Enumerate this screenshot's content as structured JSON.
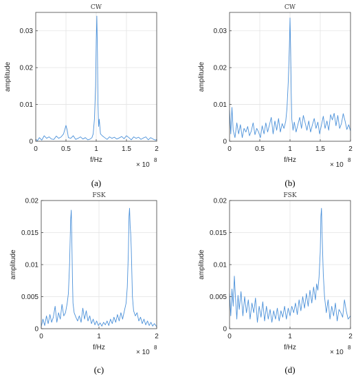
{
  "chart_data": [
    {
      "id": "a",
      "type": "line",
      "title": "CW",
      "xlabel": "f/Hz",
      "ylabel": "amplitude",
      "x_exponent_label": "× 10",
      "x_exponent": "8",
      "xlim": [
        0,
        2
      ],
      "ylim": [
        0,
        0.035
      ],
      "xticks": [
        0,
        0.5,
        1,
        1.5,
        2
      ],
      "xtick_labels": [
        "0",
        "0.5",
        "1",
        "1.5",
        "2"
      ],
      "yticks": [
        0,
        0.01,
        0.02,
        0.03
      ],
      "ytick_labels": [
        "0",
        "0.01",
        "0.02",
        "0.03"
      ],
      "panel_label": "(a)",
      "color": "#4a90d9",
      "series": [
        {
          "x": [
            0,
            0.03,
            0.06,
            0.1,
            0.14,
            0.18,
            0.22,
            0.26,
            0.3,
            0.34,
            0.38,
            0.42,
            0.46,
            0.5,
            0.52,
            0.54,
            0.58,
            0.62,
            0.66,
            0.7,
            0.74,
            0.78,
            0.82,
            0.86,
            0.9,
            0.93,
            0.95,
            0.97,
            0.99,
            1.0,
            1.01,
            1.02,
            1.03,
            1.04,
            1.05,
            1.07,
            1.1,
            1.14,
            1.18,
            1.22,
            1.26,
            1.3,
            1.34,
            1.38,
            1.42,
            1.46,
            1.5,
            1.54,
            1.58,
            1.62,
            1.66,
            1.7,
            1.74,
            1.78,
            1.82,
            1.86,
            1.9,
            1.94,
            1.98,
            2.0
          ],
          "y": [
            0.0005,
            0.0002,
            0.001,
            0.0003,
            0.0015,
            0.0008,
            0.0012,
            0.0006,
            0.0005,
            0.0014,
            0.0008,
            0.0012,
            0.002,
            0.0043,
            0.003,
            0.001,
            0.0008,
            0.0015,
            0.0005,
            0.0008,
            0.0012,
            0.0006,
            0.001,
            0.0004,
            0.0006,
            0.001,
            0.002,
            0.006,
            0.015,
            0.027,
            0.034,
            0.024,
            0.01,
            0.004,
            0.006,
            0.002,
            0.0015,
            0.001,
            0.0005,
            0.0012,
            0.0008,
            0.0011,
            0.0006,
            0.0009,
            0.0013,
            0.0007,
            0.0015,
            0.001,
            0.0004,
            0.0012,
            0.0008,
            0.0011,
            0.0005,
            0.0009,
            0.0012,
            0.0004,
            0.001,
            0.0006,
            0.0003,
            0.0005
          ]
        }
      ]
    },
    {
      "id": "b",
      "type": "line",
      "title": "CW",
      "xlabel": "f/Hz",
      "ylabel": "amplitude",
      "x_exponent_label": "× 10",
      "x_exponent": "8",
      "xlim": [
        0,
        2
      ],
      "ylim": [
        0,
        0.035
      ],
      "xticks": [
        0,
        0.5,
        1,
        1.5,
        2
      ],
      "xtick_labels": [
        "0",
        "0.5",
        "1",
        "1.5",
        "2"
      ],
      "yticks": [
        0,
        0.01,
        0.02,
        0.03
      ],
      "ytick_labels": [
        "0",
        "0.01",
        "0.02",
        "0.03"
      ],
      "panel_label": "(b)",
      "color": "#4a90d9",
      "series": [
        {
          "x": [
            0,
            0.02,
            0.04,
            0.06,
            0.09,
            0.12,
            0.15,
            0.18,
            0.21,
            0.24,
            0.27,
            0.3,
            0.33,
            0.36,
            0.39,
            0.42,
            0.45,
            0.48,
            0.51,
            0.54,
            0.57,
            0.6,
            0.63,
            0.66,
            0.69,
            0.72,
            0.75,
            0.78,
            0.81,
            0.84,
            0.87,
            0.9,
            0.93,
            0.95,
            0.97,
            0.99,
            1.0,
            1.01,
            1.02,
            1.03,
            1.05,
            1.07,
            1.1,
            1.13,
            1.16,
            1.19,
            1.22,
            1.25,
            1.28,
            1.31,
            1.34,
            1.37,
            1.4,
            1.43,
            1.46,
            1.49,
            1.52,
            1.55,
            1.58,
            1.61,
            1.64,
            1.67,
            1.7,
            1.73,
            1.76,
            1.79,
            1.82,
            1.85,
            1.88,
            1.91,
            1.94,
            1.97,
            2.0
          ],
          "y": [
            0.0085,
            0.002,
            0.0092,
            0.003,
            0.001,
            0.005,
            0.002,
            0.0045,
            0.001,
            0.0035,
            0.0025,
            0.004,
            0.0015,
            0.0028,
            0.005,
            0.0018,
            0.0035,
            0.0025,
            0.001,
            0.0042,
            0.002,
            0.005,
            0.0025,
            0.0045,
            0.0065,
            0.002,
            0.0055,
            0.003,
            0.0062,
            0.0025,
            0.0048,
            0.0035,
            0.0055,
            0.009,
            0.016,
            0.026,
            0.0335,
            0.025,
            0.013,
            0.006,
            0.003,
            0.0052,
            0.0025,
            0.0045,
            0.0065,
            0.0035,
            0.007,
            0.005,
            0.003,
            0.0055,
            0.0025,
            0.0045,
            0.0062,
            0.0035,
            0.0052,
            0.002,
            0.0045,
            0.0068,
            0.0035,
            0.0055,
            0.003,
            0.0072,
            0.0058,
            0.0076,
            0.0042,
            0.007,
            0.0035,
            0.0048,
            0.0075,
            0.0055,
            0.0032,
            0.0045,
            0.0028
          ]
        }
      ]
    },
    {
      "id": "c",
      "type": "line",
      "title": "FSK",
      "xlabel": "f/Hz",
      "ylabel": "amplitude",
      "x_exponent_label": "× 10",
      "x_exponent": "8",
      "xlim": [
        0,
        2
      ],
      "ylim": [
        0,
        0.02
      ],
      "xticks": [
        0,
        1,
        2
      ],
      "xtick_labels": [
        "0",
        "1",
        "2"
      ],
      "yticks": [
        0,
        0.005,
        0.01,
        0.015,
        0.02
      ],
      "ytick_labels": [
        "0",
        "0.005",
        "0.01",
        "0.015",
        "0.02"
      ],
      "panel_label": "(c)",
      "color": "#4a90d9",
      "series": [
        {
          "x": [
            0,
            0.03,
            0.06,
            0.09,
            0.12,
            0.15,
            0.18,
            0.21,
            0.24,
            0.27,
            0.3,
            0.33,
            0.36,
            0.39,
            0.42,
            0.45,
            0.47,
            0.49,
            0.51,
            0.52,
            0.53,
            0.54,
            0.55,
            0.57,
            0.6,
            0.63,
            0.66,
            0.69,
            0.72,
            0.75,
            0.78,
            0.81,
            0.84,
            0.87,
            0.9,
            0.93,
            0.96,
            0.99,
            1.02,
            1.05,
            1.08,
            1.11,
            1.14,
            1.17,
            1.2,
            1.23,
            1.26,
            1.29,
            1.32,
            1.35,
            1.38,
            1.41,
            1.44,
            1.47,
            1.49,
            1.51,
            1.52,
            1.53,
            1.54,
            1.55,
            1.56,
            1.57,
            1.58,
            1.6,
            1.63,
            1.66,
            1.69,
            1.72,
            1.75,
            1.78,
            1.81,
            1.84,
            1.87,
            1.9,
            1.93,
            1.96,
            2.0
          ],
          "y": [
            0.0003,
            0.0015,
            0.0005,
            0.002,
            0.0008,
            0.0022,
            0.001,
            0.0018,
            0.0035,
            0.001,
            0.0025,
            0.0015,
            0.0038,
            0.002,
            0.0025,
            0.004,
            0.0055,
            0.01,
            0.017,
            0.0185,
            0.014,
            0.008,
            0.004,
            0.0025,
            0.0018,
            0.0012,
            0.002,
            0.001,
            0.0032,
            0.0015,
            0.0028,
            0.0012,
            0.002,
            0.0008,
            0.0015,
            0.0006,
            0.0012,
            0.0005,
            0.0009,
            0.0004,
            0.001,
            0.0006,
            0.0012,
            0.0005,
            0.0015,
            0.0008,
            0.0018,
            0.001,
            0.0022,
            0.0012,
            0.0025,
            0.0015,
            0.0028,
            0.004,
            0.0065,
            0.012,
            0.0175,
            0.0188,
            0.016,
            0.0148,
            0.0125,
            0.0085,
            0.005,
            0.0028,
            0.002,
            0.0025,
            0.0012,
            0.0018,
            0.0008,
            0.0015,
            0.0006,
            0.0012,
            0.0005,
            0.001,
            0.0004,
            0.0008,
            0.0003
          ]
        }
      ]
    },
    {
      "id": "d",
      "type": "line",
      "title": "FSK",
      "xlabel": "f/Hz",
      "ylabel": "amplitude",
      "x_exponent_label": "× 10",
      "x_exponent": "8",
      "xlim": [
        0,
        2
      ],
      "ylim": [
        0,
        0.02
      ],
      "xticks": [
        0,
        1,
        2
      ],
      "xtick_labels": [
        "0",
        "1",
        "2"
      ],
      "yticks": [
        0,
        0.005,
        0.01,
        0.015,
        0.02
      ],
      "ytick_labels": [
        "0",
        "0.005",
        "0.01",
        "0.015",
        "0.02"
      ],
      "panel_label": "(d)",
      "color": "#4a90d9",
      "series": [
        {
          "x": [
            0,
            0.02,
            0.04,
            0.06,
            0.08,
            0.1,
            0.12,
            0.14,
            0.16,
            0.19,
            0.22,
            0.25,
            0.28,
            0.31,
            0.34,
            0.37,
            0.4,
            0.43,
            0.46,
            0.49,
            0.52,
            0.55,
            0.58,
            0.61,
            0.64,
            0.67,
            0.7,
            0.73,
            0.76,
            0.79,
            0.82,
            0.85,
            0.88,
            0.91,
            0.94,
            0.97,
            1.0,
            1.03,
            1.06,
            1.09,
            1.12,
            1.15,
            1.18,
            1.21,
            1.24,
            1.27,
            1.3,
            1.33,
            1.36,
            1.39,
            1.42,
            1.44,
            1.46,
            1.48,
            1.5,
            1.51,
            1.52,
            1.53,
            1.55,
            1.57,
            1.6,
            1.63,
            1.66,
            1.69,
            1.72,
            1.75,
            1.78,
            1.81,
            1.84,
            1.87,
            1.9,
            1.93,
            1.96,
            2.0
          ],
          "y": [
            0.0055,
            0.002,
            0.0062,
            0.0035,
            0.0082,
            0.0045,
            0.0015,
            0.0052,
            0.003,
            0.0058,
            0.002,
            0.005,
            0.0025,
            0.0045,
            0.0015,
            0.004,
            0.0025,
            0.0048,
            0.001,
            0.0035,
            0.0018,
            0.0042,
            0.0012,
            0.0035,
            0.0015,
            0.003,
            0.001,
            0.0028,
            0.0015,
            0.0032,
            0.0012,
            0.0028,
            0.0018,
            0.0035,
            0.0015,
            0.0032,
            0.002,
            0.0035,
            0.0025,
            0.004,
            0.0022,
            0.0045,
            0.0028,
            0.005,
            0.0032,
            0.0055,
            0.0035,
            0.006,
            0.004,
            0.0065,
            0.0045,
            0.007,
            0.006,
            0.008,
            0.012,
            0.0175,
            0.0188,
            0.015,
            0.0085,
            0.005,
            0.0025,
            0.0045,
            0.0015,
            0.0035,
            0.002,
            0.004,
            0.0012,
            0.003,
            0.0025,
            0.0018,
            0.0045,
            0.0028,
            0.0015,
            0.002
          ]
        }
      ]
    }
  ]
}
